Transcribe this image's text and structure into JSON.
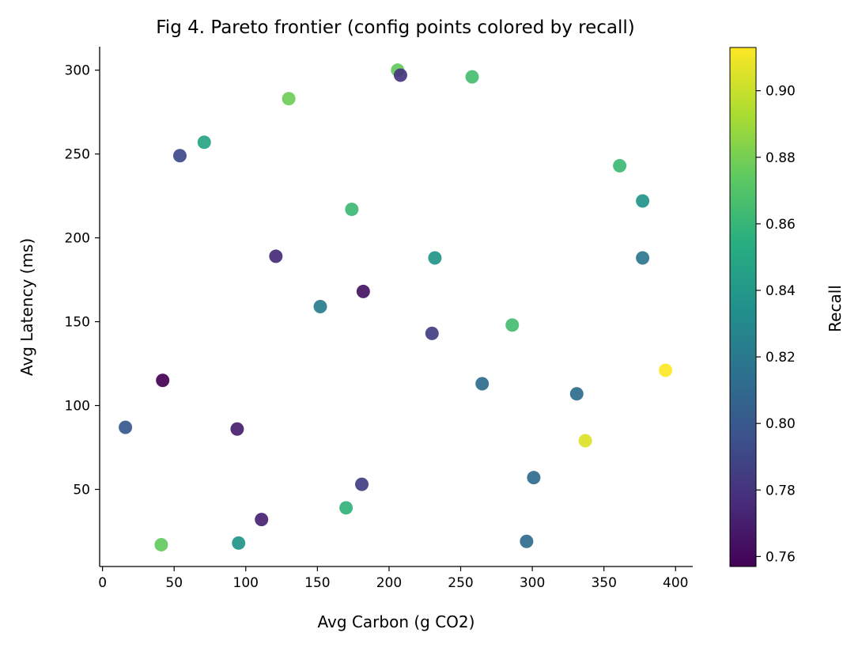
{
  "chart_data": {
    "type": "scatter",
    "title": "Fig 4. Pareto frontier (config points colored by recall)",
    "xlabel": "Avg Carbon (g CO2)",
    "ylabel": "Avg Latency (ms)",
    "colorbar_label": "Recall",
    "xlim": [
      -2,
      412
    ],
    "ylim": [
      4,
      314
    ],
    "xticks": [
      0,
      50,
      100,
      150,
      200,
      250,
      300,
      350,
      400
    ],
    "yticks": [
      50,
      100,
      150,
      200,
      250,
      300
    ],
    "colorbar_range": [
      0.757,
      0.913
    ],
    "colorbar_ticks": [
      "0.76",
      "0.78",
      "0.80",
      "0.82",
      "0.84",
      "0.86",
      "0.88",
      "0.90"
    ],
    "colormap": "viridis",
    "points": [
      {
        "x": 206,
        "y": 300,
        "recall": 0.875
      },
      {
        "x": 208,
        "y": 297,
        "recall": 0.78
      },
      {
        "x": 258,
        "y": 296,
        "recall": 0.865
      },
      {
        "x": 130,
        "y": 283,
        "recall": 0.878
      },
      {
        "x": 71,
        "y": 257,
        "recall": 0.848
      },
      {
        "x": 54,
        "y": 249,
        "recall": 0.792
      },
      {
        "x": 361,
        "y": 243,
        "recall": 0.862
      },
      {
        "x": 377,
        "y": 222,
        "recall": 0.838
      },
      {
        "x": 174,
        "y": 217,
        "recall": 0.862
      },
      {
        "x": 121,
        "y": 189,
        "recall": 0.775
      },
      {
        "x": 232,
        "y": 188,
        "recall": 0.838
      },
      {
        "x": 377,
        "y": 188,
        "recall": 0.818
      },
      {
        "x": 182,
        "y": 168,
        "recall": 0.765
      },
      {
        "x": 152,
        "y": 159,
        "recall": 0.822
      },
      {
        "x": 286,
        "y": 148,
        "recall": 0.865
      },
      {
        "x": 230,
        "y": 143,
        "recall": 0.785
      },
      {
        "x": 393,
        "y": 121,
        "recall": 0.913
      },
      {
        "x": 42,
        "y": 115,
        "recall": 0.757
      },
      {
        "x": 265,
        "y": 113,
        "recall": 0.812
      },
      {
        "x": 331,
        "y": 107,
        "recall": 0.812
      },
      {
        "x": 16,
        "y": 87,
        "recall": 0.8
      },
      {
        "x": 94,
        "y": 86,
        "recall": 0.77
      },
      {
        "x": 337,
        "y": 79,
        "recall": 0.905
      },
      {
        "x": 301,
        "y": 57,
        "recall": 0.812
      },
      {
        "x": 181,
        "y": 53,
        "recall": 0.785
      },
      {
        "x": 170,
        "y": 39,
        "recall": 0.858
      },
      {
        "x": 111,
        "y": 32,
        "recall": 0.772
      },
      {
        "x": 41,
        "y": 17,
        "recall": 0.875
      },
      {
        "x": 95,
        "y": 18,
        "recall": 0.838
      },
      {
        "x": 296,
        "y": 19,
        "recall": 0.812
      }
    ]
  }
}
